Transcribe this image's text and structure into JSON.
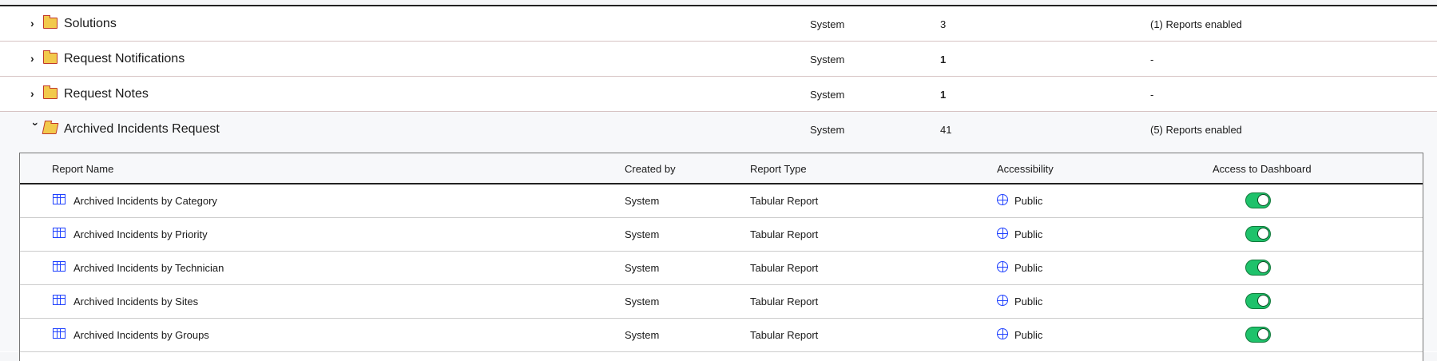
{
  "folders": [
    {
      "name": "Solutions",
      "created_by": "System",
      "count": "3",
      "reports": "(1) Reports enabled",
      "expanded": false
    },
    {
      "name": "Request Notifications",
      "created_by": "System",
      "count": "1",
      "reports": "-",
      "expanded": false
    },
    {
      "name": "Request Notes",
      "created_by": "System",
      "count": "1",
      "reports": "-",
      "expanded": false
    },
    {
      "name": "Archived Incidents Request",
      "created_by": "System",
      "count": "41",
      "reports": "(5) Reports enabled",
      "expanded": true
    }
  ],
  "icons": {
    "collapsed": "chevron-right-icon",
    "expanded": "chevron-down-icon",
    "folder": "folder-icon",
    "report": "table-report-icon",
    "accessibility": "globe-icon"
  },
  "table": {
    "headers": [
      "Report Name",
      "Created by",
      "Report Type",
      "Accessibility",
      "Access to Dashboard"
    ],
    "rows": [
      {
        "name": "Archived Incidents by Category",
        "created_by": "System",
        "type": "Tabular Report",
        "access": "Public",
        "dashboard": true
      },
      {
        "name": "Archived Incidents by Priority",
        "created_by": "System",
        "type": "Tabular Report",
        "access": "Public",
        "dashboard": true
      },
      {
        "name": "Archived Incidents by Technician",
        "created_by": "System",
        "type": "Tabular Report",
        "access": "Public",
        "dashboard": true
      },
      {
        "name": "Archived Incidents by Sites",
        "created_by": "System",
        "type": "Tabular Report",
        "access": "Public",
        "dashboard": true
      },
      {
        "name": "Archived Incidents by Groups",
        "created_by": "System",
        "type": "Tabular Report",
        "access": "Public",
        "dashboard": true
      }
    ]
  },
  "colors": {
    "toggle_on": "#1fc26b",
    "icon_blue": "#1e40ff",
    "folder": "#f2c94c"
  }
}
